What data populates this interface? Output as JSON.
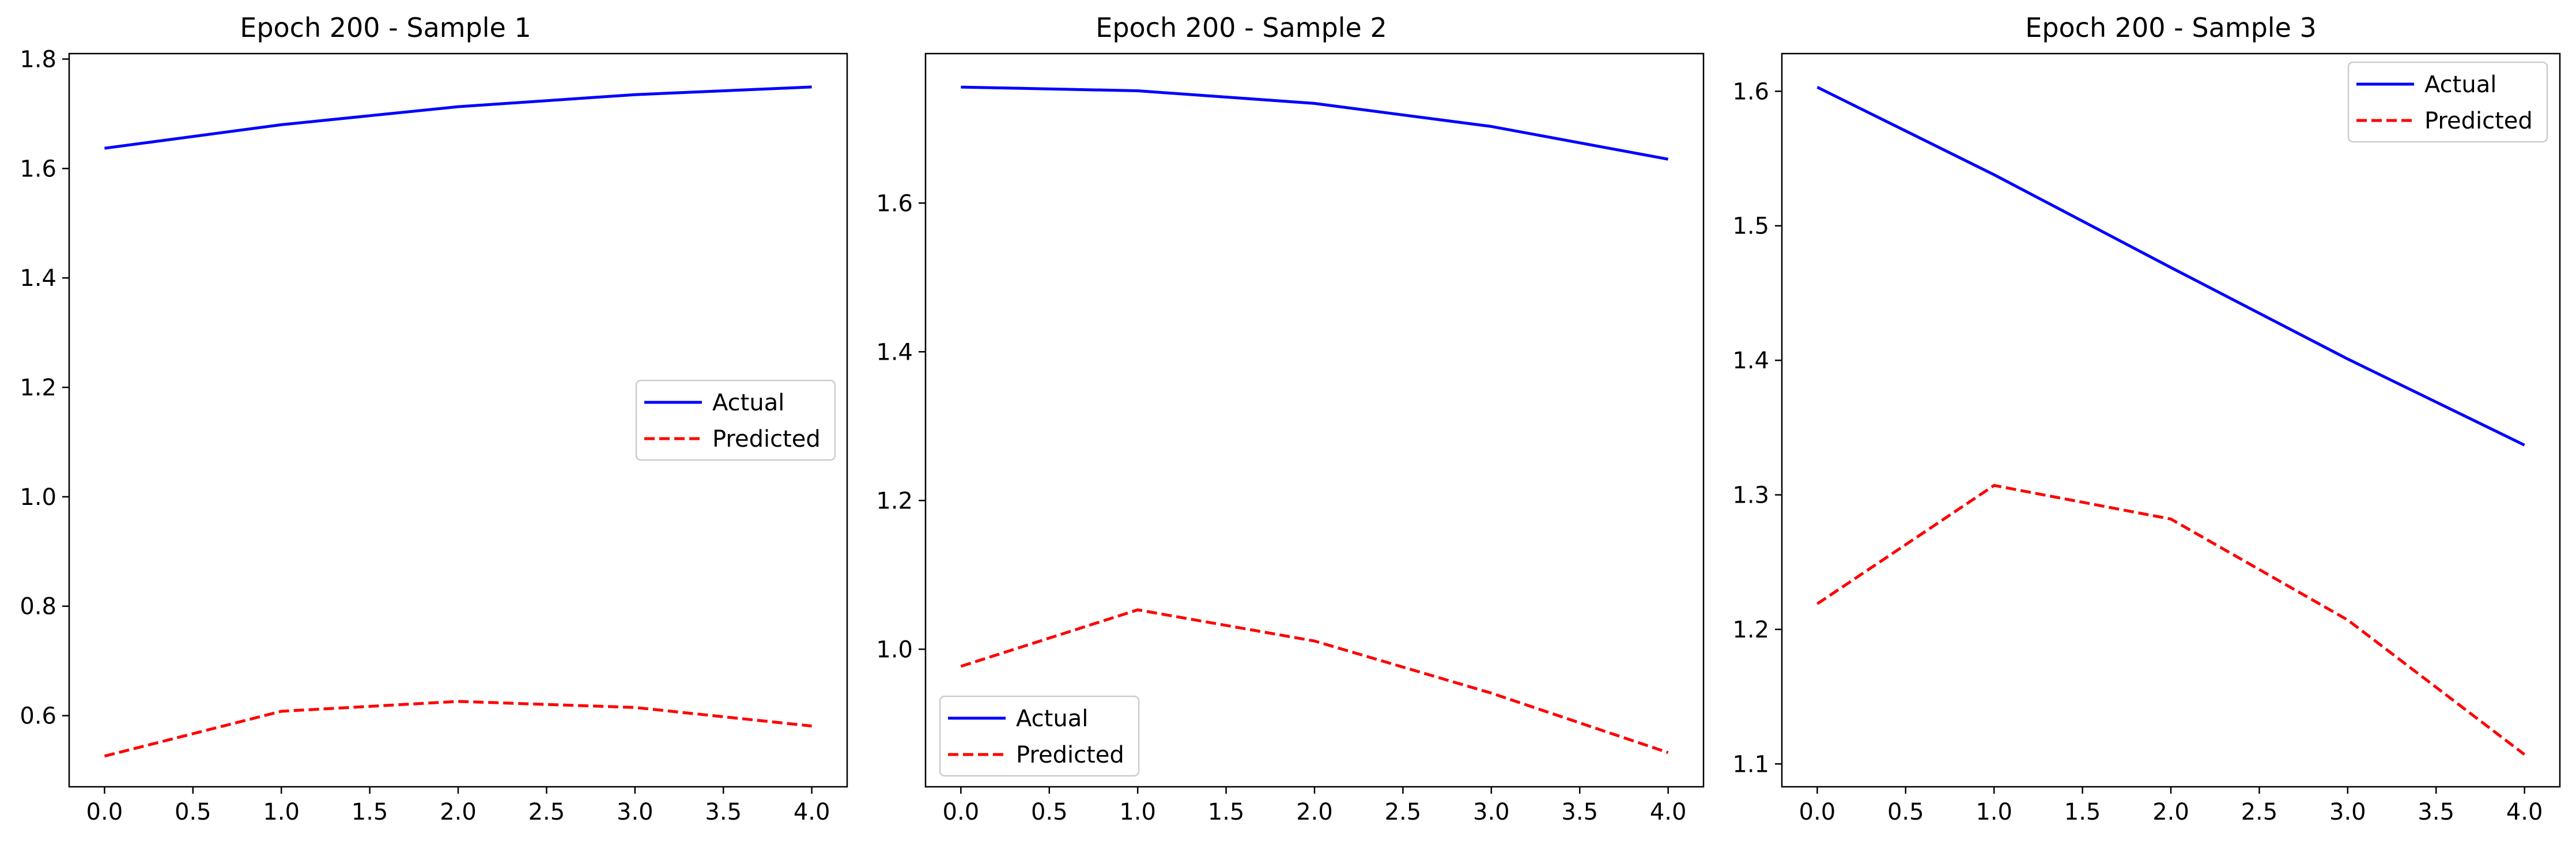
{
  "chart_data": [
    {
      "type": "line",
      "title": "Epoch 200 - Sample 1",
      "xlabel": "",
      "ylabel": "",
      "x": [
        0,
        1,
        2,
        3,
        4
      ],
      "xlim": [
        -0.2,
        4.2
      ],
      "ylim": [
        0.47,
        1.81
      ],
      "xticks": [
        0.0,
        0.5,
        1.0,
        1.5,
        2.0,
        2.5,
        3.0,
        3.5,
        4.0
      ],
      "xtick_labels": [
        "0.0",
        "0.5",
        "1.0",
        "1.5",
        "2.0",
        "2.5",
        "3.0",
        "3.5",
        "4.0"
      ],
      "yticks": [
        0.6,
        0.8,
        1.0,
        1.2,
        1.4,
        1.6,
        1.8
      ],
      "ytick_labels": [
        "0.6",
        "0.8",
        "1.0",
        "1.2",
        "1.4",
        "1.6",
        "1.8"
      ],
      "legend": "center-right",
      "grid": false,
      "series": [
        {
          "name": "Actual",
          "values": [
            1.637,
            1.68,
            1.713,
            1.735,
            1.749
          ],
          "color": "#0000ff",
          "style": "solid"
        },
        {
          "name": "Predicted",
          "values": [
            0.526,
            0.608,
            0.626,
            0.615,
            0.581
          ],
          "color": "#ff0000",
          "style": "dashed"
        }
      ]
    },
    {
      "type": "line",
      "title": "Epoch 200 - Sample 2",
      "xlabel": "",
      "ylabel": "",
      "x": [
        0,
        1,
        2,
        3,
        4
      ],
      "xlim": [
        -0.2,
        4.2
      ],
      "ylim": [
        0.815,
        1.801
      ],
      "xticks": [
        0.0,
        0.5,
        1.0,
        1.5,
        2.0,
        2.5,
        3.0,
        3.5,
        4.0
      ],
      "xtick_labels": [
        "0.0",
        "0.5",
        "1.0",
        "1.5",
        "2.0",
        "2.5",
        "3.0",
        "3.5",
        "4.0"
      ],
      "yticks": [
        1.0,
        1.2,
        1.4,
        1.6
      ],
      "ytick_labels": [
        "1.0",
        "1.2",
        "1.4",
        "1.6"
      ],
      "legend": "bottom-left",
      "grid": false,
      "series": [
        {
          "name": "Actual",
          "values": [
            1.756,
            1.751,
            1.734,
            1.703,
            1.659
          ],
          "color": "#0000ff",
          "style": "solid"
        },
        {
          "name": "Predicted",
          "values": [
            0.977,
            1.053,
            1.011,
            0.941,
            0.861
          ],
          "color": "#ff0000",
          "style": "dashed"
        }
      ]
    },
    {
      "type": "line",
      "title": "Epoch 200 - Sample 3",
      "xlabel": "",
      "ylabel": "",
      "x": [
        0,
        1,
        2,
        3,
        4
      ],
      "xlim": [
        -0.2,
        4.2
      ],
      "ylim": [
        1.083,
        1.628
      ],
      "xticks": [
        0.0,
        0.5,
        1.0,
        1.5,
        2.0,
        2.5,
        3.0,
        3.5,
        4.0
      ],
      "xtick_labels": [
        "0.0",
        "0.5",
        "1.0",
        "1.5",
        "2.0",
        "2.5",
        "3.0",
        "3.5",
        "4.0"
      ],
      "yticks": [
        1.1,
        1.2,
        1.3,
        1.4,
        1.5,
        1.6
      ],
      "ytick_labels": [
        "1.1",
        "1.2",
        "1.3",
        "1.4",
        "1.5",
        "1.6"
      ],
      "legend": "top-right",
      "grid": false,
      "series": [
        {
          "name": "Actual",
          "values": [
            1.603,
            1.538,
            1.469,
            1.401,
            1.337
          ],
          "color": "#0000ff",
          "style": "solid"
        },
        {
          "name": "Predicted",
          "values": [
            1.219,
            1.307,
            1.282,
            1.207,
            1.107
          ],
          "color": "#ff0000",
          "style": "dashed"
        }
      ]
    }
  ]
}
